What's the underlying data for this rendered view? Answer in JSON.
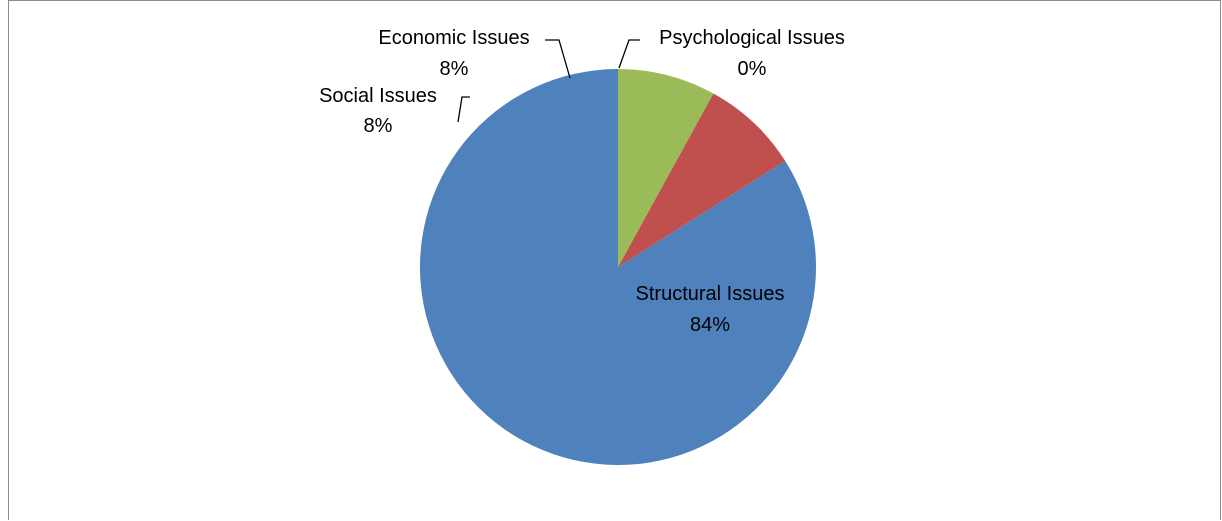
{
  "chart_data": {
    "type": "pie",
    "categories": [
      "Structural Issues",
      "Social Issues",
      "Economic Issues",
      "Psychological Issues"
    ],
    "values": [
      84,
      8,
      8,
      0
    ],
    "value_labels": [
      "84%",
      "8%",
      "8%",
      "0%"
    ],
    "colors": [
      "#4f81bd",
      "#c0504d",
      "#9bbb59",
      "#8064a2"
    ],
    "title": "",
    "legend": "none",
    "start": "12 o'clock",
    "direction": "counterclockwise"
  }
}
